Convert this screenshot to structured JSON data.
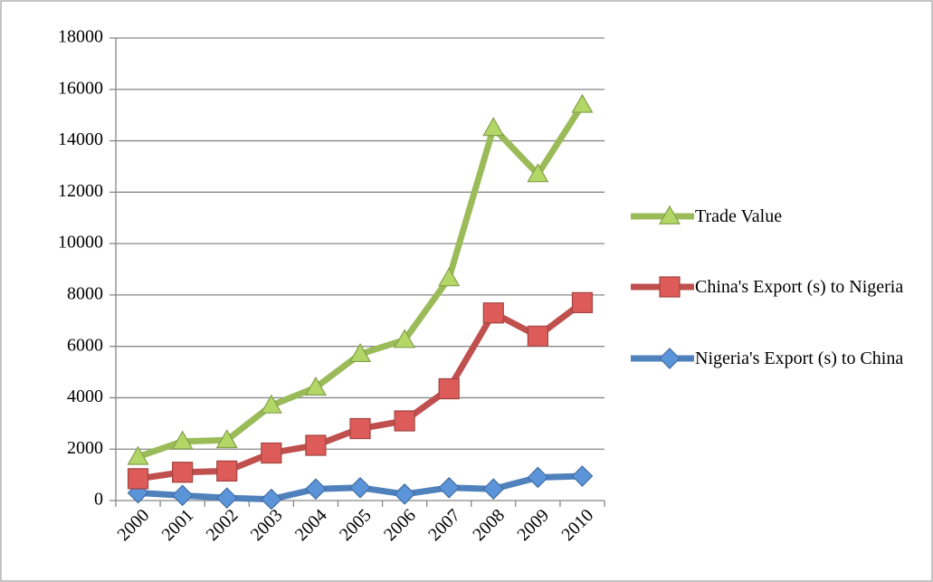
{
  "chart_data": {
    "type": "line",
    "categories": [
      "2000",
      "2001",
      "2002",
      "2003",
      "2004",
      "2005",
      "2006",
      "2007",
      "2008",
      "2009",
      "2010"
    ],
    "series": [
      {
        "name": "Trade Value",
        "color": "#9bbb59",
        "marker": "triangle",
        "values": [
          1700,
          2300,
          2350,
          3700,
          4400,
          5700,
          6250,
          8650,
          14500,
          12700,
          15400
        ]
      },
      {
        "name": "China's Export (s) to Nigeria",
        "color": "#c0504d",
        "marker": "square",
        "values": [
          850,
          1100,
          1150,
          1850,
          2150,
          2800,
          3100,
          4350,
          7300,
          6400,
          7700
        ]
      },
      {
        "name": "Nigeria's Export (s) to China",
        "color": "#4f81bd",
        "marker": "diamond",
        "values": [
          300,
          200,
          100,
          50,
          450,
          500,
          250,
          500,
          450,
          900,
          950
        ]
      }
    ],
    "ylim": [
      0,
      18000
    ],
    "yticks": [
      0,
      2000,
      4000,
      6000,
      8000,
      10000,
      12000,
      14000,
      16000,
      18000
    ],
    "grid": true,
    "legend": "right"
  }
}
